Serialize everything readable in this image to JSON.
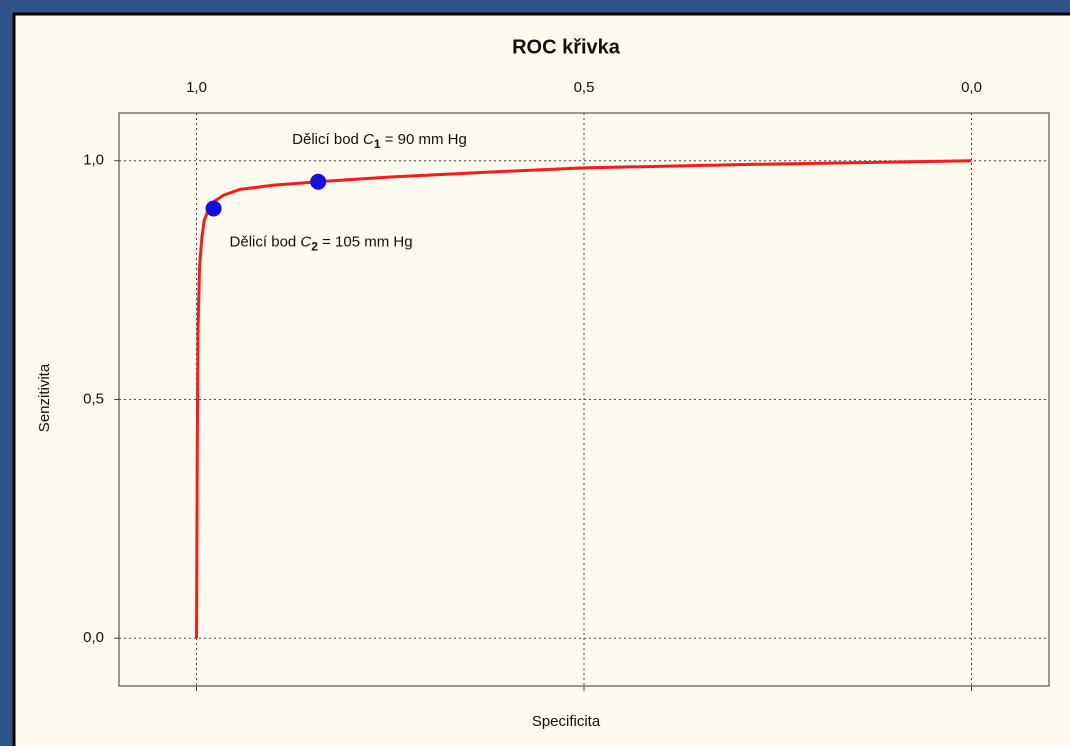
{
  "chart_data": {
    "type": "line",
    "title": "ROC křivka",
    "x_label": "Specificita",
    "y_label": "Senzitivita",
    "xlim": [
      1.1,
      -0.1
    ],
    "ylim": [
      -0.1,
      1.1
    ],
    "xticks": [
      {
        "value": 1,
        "label": "1,0"
      },
      {
        "value": 0.5,
        "label": "0,5"
      },
      {
        "value": 0,
        "label": "0,0"
      }
    ],
    "yticks": [
      {
        "value": 0,
        "label": "0,0"
      },
      {
        "value": 0.5,
        "label": "0,5"
      },
      {
        "value": 1,
        "label": "1,0"
      }
    ],
    "grid": true,
    "series": [
      {
        "color": "#ff1a1a",
        "style": "line",
        "x": [
          1.0,
          0.999,
          0.998,
          0.996,
          0.993,
          0.99,
          0.984,
          0.977,
          0.965,
          0.944,
          0.9,
          0.843,
          0.75,
          0.6,
          0.5,
          0.3,
          0.0
        ],
        "values": [
          0.0,
          0.4,
          0.65,
          0.78,
          0.84,
          0.875,
          0.9,
          0.915,
          0.928,
          0.94,
          0.949,
          0.956,
          0.966,
          0.978,
          0.985,
          0.992,
          1.0
        ]
      },
      {
        "color": "#1010e0",
        "style": "markers",
        "x": [
          0.843,
          0.978
        ],
        "values": [
          0.956,
          0.9
        ]
      }
    ],
    "annotations": [
      {
        "text": "Dělicí bod ",
        "symbol": "C",
        "subscript": "1",
        "rest": " = 90 mm Hg"
      },
      {
        "text": "Dělicí bod ",
        "symbol": "C",
        "subscript": "2",
        "rest": " = 105 mm Hg"
      }
    ]
  }
}
